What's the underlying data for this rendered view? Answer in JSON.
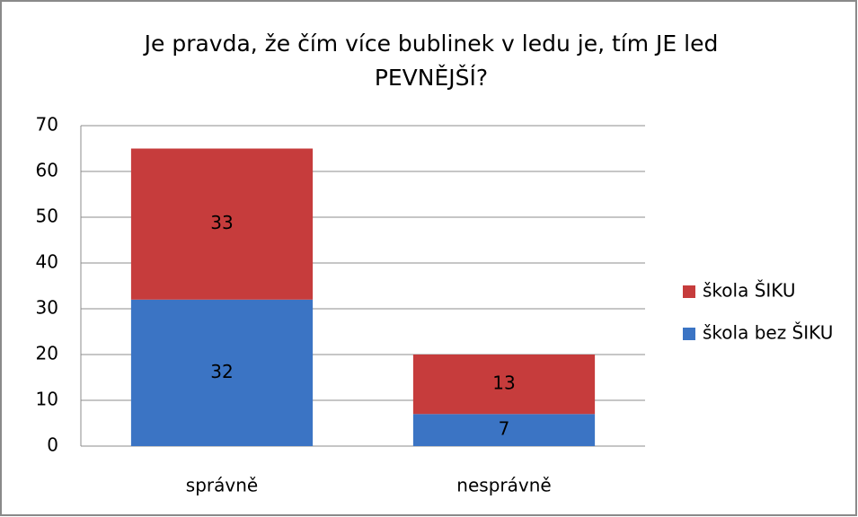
{
  "chart_data": {
    "type": "stacked_bar",
    "title": "Je pravda, že čím více bublinek v ledu je, tím JE led PEVNĚJŠÍ?",
    "categories": [
      "správně",
      "nesprávně"
    ],
    "series": [
      {
        "name": "škola bez ŠIKU",
        "color": "#3b74c4",
        "values": [
          32,
          7
        ]
      },
      {
        "name": "škola ŠIKU",
        "color": "#c63c3c",
        "values": [
          33,
          13
        ]
      }
    ],
    "ylim": [
      0,
      70
    ],
    "yticks": [
      0,
      10,
      20,
      30,
      40,
      50,
      60,
      70
    ],
    "grid": true,
    "legend": "right"
  }
}
